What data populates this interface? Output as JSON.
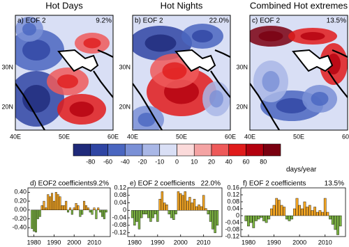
{
  "maps": [
    {
      "title": "Hot Days",
      "label": "a) EOF 2",
      "variance": "9.2%"
    },
    {
      "title": "Hot Nights",
      "label": "b) EOF 2",
      "variance": "22.0%"
    },
    {
      "title": "Combined Hot extremes",
      "label": "c) EOF 2",
      "variance": "13.5%"
    }
  ],
  "lat_labels": [
    "30N",
    "20N"
  ],
  "lon_labels": [
    "40E",
    "50E",
    "60E"
  ],
  "colorbar": {
    "ticks": [
      -80,
      -60,
      -40,
      -20,
      -10,
      0,
      10,
      20,
      40,
      60,
      80
    ],
    "colors": [
      "#1f2a7a",
      "#2f45a3",
      "#4a66c0",
      "#7a90d6",
      "#a9b7e6",
      "#d9dff5",
      "#fbdada",
      "#f4a3a3",
      "#ee5a5a",
      "#e01b1b",
      "#b3000e",
      "#7a0010"
    ],
    "unit": "days/year"
  },
  "chart_data": [
    {
      "type": "bar",
      "title": "d) EOF2 coefficients",
      "variance": "9.2%",
      "positive_color": "#f5a623",
      "negative_color": "#7cb342",
      "x": [
        1979,
        1980,
        1981,
        1982,
        1983,
        1984,
        1985,
        1986,
        1987,
        1988,
        1989,
        1990,
        1991,
        1992,
        1993,
        1994,
        1995,
        1996,
        1997,
        1998,
        1999,
        2000,
        2001,
        2002,
        2003,
        2004,
        2005,
        2006,
        2007,
        2008,
        2009,
        2010,
        2011,
        2012,
        2013,
        2014,
        2015,
        2016
      ],
      "values": [
        -0.42,
        -0.48,
        -0.5,
        -0.2,
        -0.15,
        0.1,
        0.2,
        0.05,
        0.35,
        0.3,
        0.38,
        0.2,
        0.4,
        0.35,
        0.3,
        0.1,
        0.1,
        0.2,
        -0.05,
        0.05,
        -0.1,
        0.05,
        0.15,
        0.1,
        -0.15,
        -0.1,
        0.2,
        0.1,
        0.05,
        -0.05,
        -0.1,
        0.05,
        -0.2,
        0.05,
        -0.05,
        -0.15,
        -0.2,
        -0.05
      ],
      "xlim": [
        1977,
        2018
      ],
      "xticks": [
        1980,
        1990,
        2000,
        2010
      ],
      "ylim": [
        -0.6,
        0.5
      ],
      "yticks": [
        {
          "value": 0.4,
          "label": "0.40"
        },
        {
          "value": 0.2,
          "label": "0.20"
        },
        {
          "value": 0,
          "label": "0.00"
        },
        {
          "value": -0.2,
          "label": "-0.20"
        },
        {
          "value": -0.4,
          "label": "-0.40"
        }
      ]
    },
    {
      "type": "bar",
      "title": "e) EOF 2 coefficients",
      "variance": "22.0%",
      "positive_color": "#f5a623",
      "negative_color": "#7cb342",
      "x": [
        1979,
        1980,
        1981,
        1982,
        1983,
        1984,
        1985,
        1986,
        1987,
        1988,
        1989,
        1990,
        1991,
        1992,
        1993,
        1994,
        1995,
        1996,
        1997,
        1998,
        1999,
        2000,
        2001,
        2002,
        2003,
        2004,
        2005,
        2006,
        2007,
        2008,
        2009,
        2010,
        2011,
        2012,
        2013,
        2014,
        2015,
        2016
      ],
      "values": [
        -0.04,
        -0.08,
        -0.06,
        -0.1,
        -0.04,
        -0.02,
        -0.02,
        -0.04,
        -0.06,
        -0.04,
        -0.02,
        -0.06,
        0.06,
        0.1,
        0.04,
        0.03,
        -0.02,
        -0.04,
        -0.05,
        -0.02,
        0.1,
        0.09,
        0.08,
        0.1,
        0.05,
        0.07,
        0.04,
        0.06,
        0.02,
        0.03,
        0.02,
        0.08,
        0.01,
        -0.02,
        -0.06,
        -0.1,
        -0.12,
        -0.08
      ],
      "xlim": [
        1977,
        2018
      ],
      "xticks": [
        1980,
        1990,
        2000,
        2010
      ],
      "ylim": [
        -0.14,
        0.12
      ],
      "yticks": [
        0.12,
        0.08,
        0.04,
        0,
        -0.04,
        -0.08,
        -0.12
      ]
    },
    {
      "type": "bar",
      "title": "f) EOF 2 coefficients",
      "variance": "13.5%",
      "positive_color": "#f5a623",
      "negative_color": "#7cb342",
      "x": [
        1979,
        1980,
        1981,
        1982,
        1983,
        1984,
        1985,
        1986,
        1987,
        1988,
        1989,
        1990,
        1991,
        1992,
        1993,
        1994,
        1995,
        1996,
        1997,
        1998,
        1999,
        2000,
        2001,
        2002,
        2003,
        2004,
        2005,
        2006,
        2007,
        2008,
        2009,
        2010,
        2011,
        2012,
        2013,
        2014,
        2015,
        2016
      ],
      "values": [
        -0.03,
        -0.06,
        -0.04,
        -0.07,
        -0.03,
        -0.02,
        -0.01,
        -0.03,
        -0.04,
        -0.02,
        0.04,
        0.06,
        0.1,
        0.09,
        0.06,
        0.05,
        -0.02,
        -0.03,
        -0.02,
        0.04,
        0.1,
        0.06,
        0.04,
        0.08,
        0.05,
        0.06,
        0.03,
        0.05,
        0.02,
        0.03,
        0.02,
        0.1,
        0.02,
        -0.02,
        -0.05,
        -0.08,
        -0.11,
        -0.06
      ],
      "xlim": [
        1977,
        2018
      ],
      "xticks": [
        1980,
        1990,
        2000,
        2010
      ],
      "ylim": [
        -0.12,
        0.16
      ],
      "yticks": [
        0.16,
        0.12,
        0.08,
        0.04,
        0,
        -0.04,
        -0.08,
        -0.12
      ]
    }
  ]
}
